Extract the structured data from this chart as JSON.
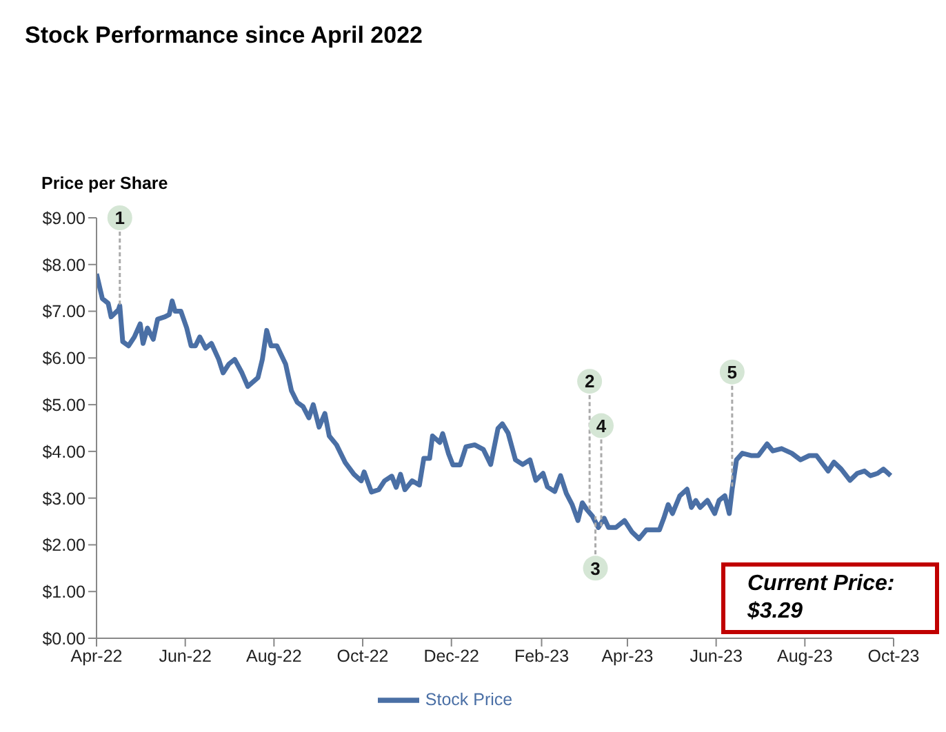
{
  "chart_data": {
    "type": "line",
    "title": "Stock Performance since April 2022",
    "ylabel": "Price per Share",
    "xlim": [
      "2022-04-01",
      "2023-10-01"
    ],
    "xticks": [
      {
        "value": "2022-04-01",
        "label": "Apr-22"
      },
      {
        "value": "2022-06-01",
        "label": "Jun-22"
      },
      {
        "value": "2022-08-01",
        "label": "Aug-22"
      },
      {
        "value": "2022-10-01",
        "label": "Oct-22"
      },
      {
        "value": "2022-12-01",
        "label": "Dec-22"
      },
      {
        "value": "2023-02-01",
        "label": "Feb-23"
      },
      {
        "value": "2023-04-01",
        "label": "Apr-23"
      },
      {
        "value": "2023-06-01",
        "label": "Jun-23"
      },
      {
        "value": "2023-08-01",
        "label": "Aug-23"
      },
      {
        "value": "2023-10-01",
        "label": "Oct-23"
      }
    ],
    "ylim": [
      0,
      9
    ],
    "yticks": [
      {
        "value": 0,
        "label": "$0.00"
      },
      {
        "value": 1,
        "label": "$1.00"
      },
      {
        "value": 2,
        "label": "$2.00"
      },
      {
        "value": 3,
        "label": "$3.00"
      },
      {
        "value": 4,
        "label": "$4.00"
      },
      {
        "value": 5,
        "label": "$5.00"
      },
      {
        "value": 6,
        "label": "$6.00"
      },
      {
        "value": 7,
        "label": "$7.00"
      },
      {
        "value": 8,
        "label": "$8.00"
      },
      {
        "value": 9,
        "label": "$9.00"
      }
    ],
    "grid": false,
    "legend": "bottom",
    "marker": "none",
    "line_style": "solid",
    "series": [
      {
        "name": "Stock Price",
        "color": "#4a6fa5",
        "x": [
          "2022-04-01",
          "2022-04-05",
          "2022-04-09",
          "2022-04-11",
          "2022-04-16",
          "2022-04-17",
          "2022-04-19",
          "2022-04-23",
          "2022-04-27",
          "2022-05-01",
          "2022-05-03",
          "2022-05-06",
          "2022-05-10",
          "2022-05-13",
          "2022-05-18",
          "2022-05-21",
          "2022-05-23",
          "2022-05-25",
          "2022-05-29",
          "2022-06-02",
          "2022-06-05",
          "2022-06-08",
          "2022-06-11",
          "2022-06-15",
          "2022-06-19",
          "2022-06-24",
          "2022-06-27",
          "2022-07-01",
          "2022-07-05",
          "2022-07-10",
          "2022-07-14",
          "2022-07-21",
          "2022-07-24",
          "2022-07-27",
          "2022-07-30",
          "2022-08-03",
          "2022-08-09",
          "2022-08-13",
          "2022-08-17",
          "2022-08-21",
          "2022-08-25",
          "2022-08-28",
          "2022-09-01",
          "2022-09-05",
          "2022-09-08",
          "2022-09-13",
          "2022-09-19",
          "2022-09-25",
          "2022-09-30",
          "2022-10-02",
          "2022-10-07",
          "2022-10-12",
          "2022-10-16",
          "2022-10-21",
          "2022-10-24",
          "2022-10-27",
          "2022-10-30",
          "2022-11-04",
          "2022-11-09",
          "2022-11-12",
          "2022-11-16",
          "2022-11-18",
          "2022-11-23",
          "2022-11-25",
          "2022-11-29",
          "2022-12-02",
          "2022-12-07",
          "2022-12-11",
          "2022-12-17",
          "2022-12-23",
          "2022-12-28",
          "2023-01-02",
          "2023-01-05",
          "2023-01-09",
          "2023-01-14",
          "2023-01-19",
          "2023-01-24",
          "2023-01-28",
          "2023-02-02",
          "2023-02-05",
          "2023-02-10",
          "2023-02-14",
          "2023-02-18",
          "2023-02-22",
          "2023-02-26",
          "2023-03-01",
          "2023-03-04",
          "2023-03-08",
          "2023-03-12",
          "2023-03-16",
          "2023-03-19",
          "2023-03-24",
          "2023-03-30",
          "2023-04-04",
          "2023-04-09",
          "2023-04-14",
          "2023-04-18",
          "2023-04-23",
          "2023-04-26",
          "2023-04-29",
          "2023-05-02",
          "2023-05-07",
          "2023-05-12",
          "2023-05-15",
          "2023-05-18",
          "2023-05-21",
          "2023-05-26",
          "2023-05-31",
          "2023-06-03",
          "2023-06-07",
          "2023-06-10",
          "2023-06-12",
          "2023-06-15",
          "2023-06-19",
          "2023-06-25",
          "2023-06-30",
          "2023-07-06",
          "2023-07-10",
          "2023-07-16",
          "2023-07-23",
          "2023-07-29",
          "2023-08-04",
          "2023-08-09",
          "2023-08-17",
          "2023-08-21",
          "2023-08-26",
          "2023-09-01",
          "2023-09-06",
          "2023-09-11",
          "2023-09-15",
          "2023-09-20",
          "2023-09-24",
          "2023-09-29"
        ],
        "values": [
          7.8,
          7.27,
          7.17,
          6.88,
          7.03,
          7.12,
          6.35,
          6.26,
          6.45,
          6.73,
          6.31,
          6.64,
          6.4,
          6.83,
          6.88,
          6.93,
          7.22,
          7.0,
          7.0,
          6.64,
          6.26,
          6.26,
          6.45,
          6.21,
          6.31,
          5.97,
          5.68,
          5.87,
          5.97,
          5.68,
          5.39,
          5.58,
          5.97,
          6.59,
          6.26,
          6.26,
          5.87,
          5.3,
          5.05,
          4.96,
          4.72,
          5.0,
          4.52,
          4.81,
          4.33,
          4.14,
          3.76,
          3.51,
          3.37,
          3.56,
          3.13,
          3.18,
          3.37,
          3.47,
          3.23,
          3.51,
          3.18,
          3.37,
          3.28,
          3.85,
          3.85,
          4.33,
          4.19,
          4.38,
          3.95,
          3.71,
          3.71,
          4.1,
          4.14,
          4.04,
          3.72,
          4.49,
          4.59,
          4.39,
          3.82,
          3.72,
          3.82,
          3.38,
          3.53,
          3.24,
          3.14,
          3.48,
          3.1,
          2.86,
          2.52,
          2.9,
          2.76,
          2.61,
          2.37,
          2.57,
          2.37,
          2.37,
          2.52,
          2.28,
          2.13,
          2.32,
          2.32,
          2.32,
          2.57,
          2.86,
          2.67,
          3.05,
          3.19,
          2.8,
          2.95,
          2.8,
          2.95,
          2.67,
          2.95,
          3.05,
          2.67,
          3.19,
          3.82,
          3.96,
          3.91,
          3.91,
          4.16,
          4.01,
          4.06,
          3.96,
          3.82,
          3.91,
          3.91,
          3.58,
          3.77,
          3.62,
          3.38,
          3.53,
          3.58,
          3.48,
          3.53,
          3.62,
          3.48
        ]
      }
    ],
    "annotations": [
      {
        "text": "1",
        "x": "2022-04-17",
        "y": 9.0
      },
      {
        "text": "2",
        "x": "2023-03-06",
        "y": 5.5
      },
      {
        "text": "3",
        "x": "2023-03-10",
        "y": 1.5
      },
      {
        "text": "4",
        "x": "2023-03-14",
        "y": 4.55
      },
      {
        "text": "5",
        "x": "2023-06-12",
        "y": 5.7
      },
      "Current Price: $3.29"
    ]
  }
}
